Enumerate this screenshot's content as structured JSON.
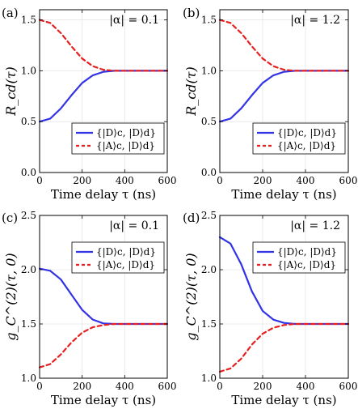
{
  "chart_data": [
    {
      "panel": "(a)",
      "type": "line",
      "annotation": "|α| = 0.1",
      "ylabel": "R_cd(τ)",
      "xlabel": "Time delay τ (ns)",
      "xlim": [
        0,
        600
      ],
      "ylim": [
        0.0,
        1.6
      ],
      "xticks": [
        "0",
        "200",
        "400",
        "600"
      ],
      "yticks": [
        "0.0",
        "0.5",
        "1.0",
        "1.5"
      ],
      "grid": true,
      "legend_position": "bottom-right",
      "x": [
        0,
        50,
        100,
        150,
        200,
        250,
        300,
        350,
        400,
        450,
        500,
        550,
        600
      ],
      "series": [
        {
          "name": "{|D⟩c, |D⟩d}",
          "style": "solid",
          "color": "#3333e6",
          "values": [
            0.5,
            0.53,
            0.63,
            0.76,
            0.88,
            0.955,
            0.99,
            1.0,
            1.0,
            1.0,
            1.0,
            1.0,
            1.0
          ]
        },
        {
          "name": "{|A⟩c, |D⟩d}",
          "style": "dashed",
          "color": "#e62020",
          "values": [
            1.5,
            1.47,
            1.37,
            1.24,
            1.12,
            1.045,
            1.01,
            1.0,
            1.0,
            1.0,
            1.0,
            1.0,
            1.0
          ]
        }
      ]
    },
    {
      "panel": "(b)",
      "type": "line",
      "annotation": "|α| = 1.2",
      "ylabel": "R_cd(τ)",
      "xlabel": "Time delay τ (ns)",
      "xlim": [
        0,
        600
      ],
      "ylim": [
        0.0,
        1.6
      ],
      "xticks": [
        "0",
        "200",
        "400",
        "600"
      ],
      "yticks": [
        "0.0",
        "0.5",
        "1.0",
        "1.5"
      ],
      "grid": true,
      "legend_position": "bottom-right",
      "x": [
        0,
        50,
        100,
        150,
        200,
        250,
        300,
        350,
        400,
        450,
        500,
        550,
        600
      ],
      "series": [
        {
          "name": "{|D⟩c, |D⟩d}",
          "style": "solid",
          "color": "#3333e6",
          "values": [
            0.5,
            0.53,
            0.63,
            0.76,
            0.88,
            0.955,
            0.99,
            1.0,
            1.0,
            1.0,
            1.0,
            1.0,
            1.0
          ]
        },
        {
          "name": "{|A⟩c, |D⟩d}",
          "style": "dashed",
          "color": "#e62020",
          "values": [
            1.5,
            1.47,
            1.37,
            1.24,
            1.12,
            1.045,
            1.01,
            1.0,
            1.0,
            1.0,
            1.0,
            1.0,
            1.0
          ]
        }
      ]
    },
    {
      "panel": "(c)",
      "type": "line",
      "annotation": "|α| = 0.1",
      "ylabel": "g_C^(2)(τ, 0)",
      "xlabel": "Time delay τ (ns)",
      "xlim": [
        0,
        600
      ],
      "ylim": [
        1.0,
        2.5
      ],
      "xticks": [
        "0",
        "200",
        "400",
        "600"
      ],
      "yticks": [
        "1.0",
        "1.5",
        "2.0",
        "2.5"
      ],
      "grid": true,
      "legend_position": "top-right",
      "x": [
        0,
        50,
        100,
        150,
        200,
        250,
        300,
        350,
        400,
        450,
        500,
        550,
        600
      ],
      "series": [
        {
          "name": "{|D⟩c, |D⟩d}",
          "style": "solid",
          "color": "#3333e6",
          "values": [
            2.01,
            1.99,
            1.91,
            1.77,
            1.63,
            1.54,
            1.505,
            1.5,
            1.5,
            1.5,
            1.5,
            1.5,
            1.5
          ]
        },
        {
          "name": "{|A⟩c, |D⟩d}",
          "style": "dashed",
          "color": "#e62020",
          "values": [
            1.1,
            1.13,
            1.22,
            1.33,
            1.42,
            1.47,
            1.49,
            1.5,
            1.5,
            1.5,
            1.5,
            1.5,
            1.5
          ]
        }
      ]
    },
    {
      "panel": "(d)",
      "type": "line",
      "annotation": "|α| = 1.2",
      "ylabel": "g_C^(2)(τ, 0)",
      "xlabel": "Time delay τ (ns)",
      "xlim": [
        0,
        600
      ],
      "ylim": [
        1.0,
        2.5
      ],
      "xticks": [
        "0",
        "200",
        "400",
        "600"
      ],
      "yticks": [
        "1.0",
        "1.5",
        "2.0",
        "2.5"
      ],
      "grid": true,
      "legend_position": "top-right",
      "x": [
        0,
        50,
        100,
        150,
        200,
        250,
        300,
        350,
        400,
        450,
        500,
        550,
        600
      ],
      "series": [
        {
          "name": "{|D⟩c, |D⟩d}",
          "style": "solid",
          "color": "#3333e6",
          "values": [
            2.3,
            2.24,
            2.05,
            1.8,
            1.62,
            1.54,
            1.51,
            1.5,
            1.5,
            1.5,
            1.5,
            1.5,
            1.5
          ]
        },
        {
          "name": "{|A⟩c, |D⟩d}",
          "style": "dashed",
          "color": "#e62020",
          "values": [
            1.06,
            1.09,
            1.18,
            1.31,
            1.41,
            1.465,
            1.49,
            1.5,
            1.5,
            1.5,
            1.5,
            1.5,
            1.5
          ]
        }
      ]
    }
  ]
}
